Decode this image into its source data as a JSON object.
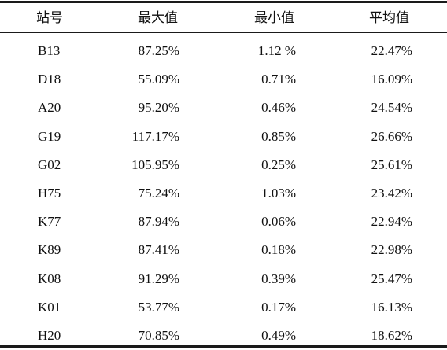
{
  "table": {
    "headers": {
      "station": "站号",
      "max": "最大值",
      "min": "最小值",
      "avg": "平均值"
    },
    "rows": [
      {
        "station": "B13",
        "max": "87.25%",
        "min": "1.12 %",
        "avg": "22.47%"
      },
      {
        "station": "D18",
        "max": "55.09%",
        "min": "0.71%",
        "avg": "16.09%"
      },
      {
        "station": "A20",
        "max": "95.20%",
        "min": "0.46%",
        "avg": "24.54%"
      },
      {
        "station": "G19",
        "max": "117.17%",
        "min": "0.85%",
        "avg": "26.66%"
      },
      {
        "station": "G02",
        "max": "105.95%",
        "min": "0.25%",
        "avg": "25.61%"
      },
      {
        "station": "H75",
        "max": "75.24%",
        "min": "1.03%",
        "avg": "23.42%"
      },
      {
        "station": "K77",
        "max": "87.94%",
        "min": "0.06%",
        "avg": "22.94%"
      },
      {
        "station": "K89",
        "max": "87.41%",
        "min": "0.18%",
        "avg": "22.98%"
      },
      {
        "station": "K08",
        "max": "91.29%",
        "min": "0.39%",
        "avg": "25.47%"
      },
      {
        "station": "K01",
        "max": "53.77%",
        "min": "0.17%",
        "avg": "16.13%"
      },
      {
        "station": "H20",
        "max": "70.85%",
        "min": "0.49%",
        "avg": "18.62%"
      }
    ]
  }
}
